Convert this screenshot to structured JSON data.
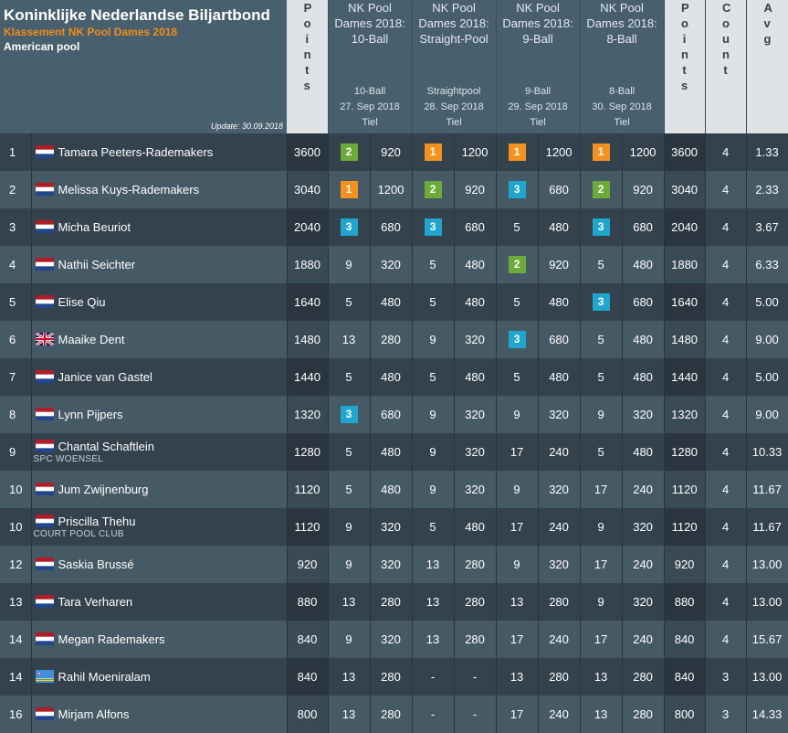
{
  "header": {
    "title": "Koninklijke Nederlandse Biljartbond",
    "subtitle": "Klassement NK Pool Dames 2018",
    "discipline": "American pool",
    "update": "Update: 30.09.2018",
    "points_label": "Points",
    "count_label": "Count",
    "avg_label": "Avg"
  },
  "tournaments": [
    {
      "name": "NK Pool Dames 2018: 10-Ball",
      "discipline": "10-Ball",
      "date": "27. Sep 2018",
      "place": "Tiel"
    },
    {
      "name": "NK Pool Dames 2018: Straight-Pool",
      "discipline": "Straightpool",
      "date": "28. Sep 2018",
      "place": "Tiel"
    },
    {
      "name": "NK Pool Dames 2018: 9-Ball",
      "discipline": "9-Ball",
      "date": "29. Sep 2018",
      "place": "Tiel"
    },
    {
      "name": "NK Pool Dames 2018: 8-Ball",
      "discipline": "8-Ball",
      "date": "30. Sep 2018",
      "place": "Tiel"
    }
  ],
  "flag_colors": {
    "nl_red": "#ae1c28",
    "nl_white": "#ffffff",
    "nl_blue": "#21468b",
    "gb_blue": "#012169",
    "gb_red": "#c8102e",
    "aw_blue": "#418fde",
    "aw_yellow": "#f9d616"
  },
  "rows": [
    {
      "rank": "1",
      "flag": "nl-flag",
      "name": "Tamara Peeters-Rademakers",
      "club": "",
      "points": "3600",
      "results": [
        [
          "2",
          "920"
        ],
        [
          "1",
          "1200"
        ],
        [
          "1",
          "1200"
        ],
        [
          "1",
          "1200"
        ]
      ],
      "points2": "3600",
      "count": "4",
      "avg": "1.33"
    },
    {
      "rank": "2",
      "flag": "nl-flag",
      "name": "Melissa Kuys-Rademakers",
      "club": "",
      "points": "3040",
      "results": [
        [
          "1",
          "1200"
        ],
        [
          "2",
          "920"
        ],
        [
          "3",
          "680"
        ],
        [
          "2",
          "920"
        ]
      ],
      "points2": "3040",
      "count": "4",
      "avg": "2.33"
    },
    {
      "rank": "3",
      "flag": "nl-flag",
      "name": "Micha Beuriot",
      "club": "",
      "points": "2040",
      "results": [
        [
          "3",
          "680"
        ],
        [
          "3",
          "680"
        ],
        [
          "5",
          "480"
        ],
        [
          "3",
          "680"
        ]
      ],
      "points2": "2040",
      "count": "4",
      "avg": "3.67"
    },
    {
      "rank": "4",
      "flag": "nl-flag",
      "name": "Nathii Seichter",
      "club": "",
      "points": "1880",
      "results": [
        [
          "9",
          "320"
        ],
        [
          "5",
          "480"
        ],
        [
          "2",
          "920"
        ],
        [
          "5",
          "480"
        ]
      ],
      "points2": "1880",
      "count": "4",
      "avg": "6.33"
    },
    {
      "rank": "5",
      "flag": "nl-flag",
      "name": "Elise Qiu",
      "club": "",
      "points": "1640",
      "results": [
        [
          "5",
          "480"
        ],
        [
          "5",
          "480"
        ],
        [
          "5",
          "480"
        ],
        [
          "3",
          "680"
        ]
      ],
      "points2": "1640",
      "count": "4",
      "avg": "5.00"
    },
    {
      "rank": "6",
      "flag": "gb-flag",
      "name": "Maaike Dent",
      "club": "",
      "points": "1480",
      "results": [
        [
          "13",
          "280"
        ],
        [
          "9",
          "320"
        ],
        [
          "3",
          "680"
        ],
        [
          "5",
          "480"
        ]
      ],
      "points2": "1480",
      "count": "4",
      "avg": "9.00"
    },
    {
      "rank": "7",
      "flag": "nl-flag",
      "name": "Janice van Gastel",
      "club": "",
      "points": "1440",
      "results": [
        [
          "5",
          "480"
        ],
        [
          "5",
          "480"
        ],
        [
          "5",
          "480"
        ],
        [
          "5",
          "480"
        ]
      ],
      "points2": "1440",
      "count": "4",
      "avg": "5.00"
    },
    {
      "rank": "8",
      "flag": "nl-flag",
      "name": "Lynn Pijpers",
      "club": "",
      "points": "1320",
      "results": [
        [
          "3",
          "680"
        ],
        [
          "9",
          "320"
        ],
        [
          "9",
          "320"
        ],
        [
          "9",
          "320"
        ]
      ],
      "points2": "1320",
      "count": "4",
      "avg": "9.00"
    },
    {
      "rank": "9",
      "flag": "nl-flag",
      "name": "Chantal Schaftlein",
      "club": "SPC WOENSEL",
      "points": "1280",
      "results": [
        [
          "5",
          "480"
        ],
        [
          "9",
          "320"
        ],
        [
          "17",
          "240"
        ],
        [
          "5",
          "480"
        ]
      ],
      "points2": "1280",
      "count": "4",
      "avg": "10.33"
    },
    {
      "rank": "10",
      "flag": "nl-flag",
      "name": "Jum Zwijnenburg",
      "club": "",
      "points": "1120",
      "results": [
        [
          "5",
          "480"
        ],
        [
          "9",
          "320"
        ],
        [
          "9",
          "320"
        ],
        [
          "17",
          "240"
        ]
      ],
      "points2": "1120",
      "count": "4",
      "avg": "11.67"
    },
    {
      "rank": "10",
      "flag": "nl-flag",
      "name": "Priscilla Thehu",
      "club": "COURT POOL CLUB",
      "points": "1120",
      "results": [
        [
          "9",
          "320"
        ],
        [
          "5",
          "480"
        ],
        [
          "17",
          "240"
        ],
        [
          "9",
          "320"
        ]
      ],
      "points2": "1120",
      "count": "4",
      "avg": "11.67"
    },
    {
      "rank": "12",
      "flag": "nl-flag",
      "name": "Saskia Brussé",
      "club": "",
      "points": "920",
      "results": [
        [
          "9",
          "320"
        ],
        [
          "13",
          "280"
        ],
        [
          "9",
          "320"
        ],
        [
          "17",
          "240"
        ]
      ],
      "points2": "920",
      "count": "4",
      "avg": "13.00"
    },
    {
      "rank": "13",
      "flag": "nl-flag",
      "name": "Tara Verharen",
      "club": "",
      "points": "880",
      "results": [
        [
          "13",
          "280"
        ],
        [
          "13",
          "280"
        ],
        [
          "13",
          "280"
        ],
        [
          "9",
          "320"
        ]
      ],
      "points2": "880",
      "count": "4",
      "avg": "13.00"
    },
    {
      "rank": "14",
      "flag": "nl-flag",
      "name": "Megan Rademakers",
      "club": "",
      "points": "840",
      "results": [
        [
          "9",
          "320"
        ],
        [
          "13",
          "280"
        ],
        [
          "17",
          "240"
        ],
        [
          "17",
          "240"
        ]
      ],
      "points2": "840",
      "count": "4",
      "avg": "15.67"
    },
    {
      "rank": "14",
      "flag": "aw-flag",
      "name": "Rahil Moeniralam",
      "club": "",
      "points": "840",
      "results": [
        [
          "13",
          "280"
        ],
        [
          "-",
          "-"
        ],
        [
          "13",
          "280"
        ],
        [
          "13",
          "280"
        ]
      ],
      "points2": "840",
      "count": "3",
      "avg": "13.00"
    },
    {
      "rank": "16",
      "flag": "nl-flag",
      "name": "Mirjam Alfons",
      "club": "",
      "points": "800",
      "results": [
        [
          "13",
          "280"
        ],
        [
          "-",
          "-"
        ],
        [
          "17",
          "240"
        ],
        [
          "13",
          "280"
        ]
      ],
      "points2": "800",
      "count": "3",
      "avg": "14.33"
    }
  ]
}
